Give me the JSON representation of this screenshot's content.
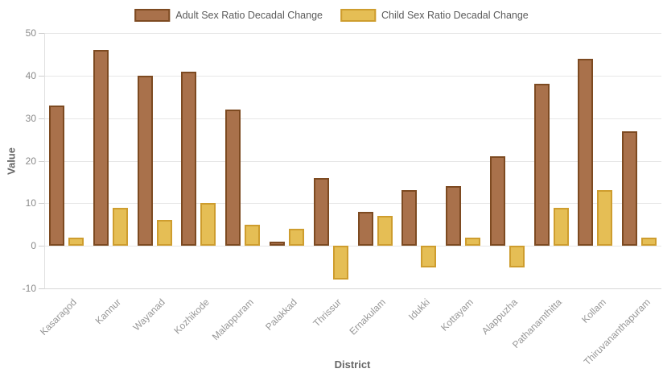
{
  "chart_data": {
    "type": "bar",
    "title": "",
    "xlabel": "District",
    "ylabel": "Value",
    "ylim": [
      -10,
      50
    ],
    "yticks": [
      50,
      40,
      30,
      20,
      10,
      0,
      -10
    ],
    "grid": true,
    "legend_position": "top-center",
    "background_color": "#ffffff",
    "categories": [
      "Kasaragod",
      "Kannur",
      "Wayanad",
      "Kozhikode",
      "Malappuram",
      "Palakkad",
      "Thrissur",
      "Ernakulam",
      "Idukki",
      "Kottayam",
      "Alappuzha",
      "Pathanamthitta",
      "Kollam",
      "Thiruvananthapuram"
    ],
    "series": [
      {
        "name": "Adult Sex Ratio Decadal Change",
        "color": "#a9714b",
        "border_color": "#7d4a21",
        "values": [
          33,
          46,
          40,
          41,
          32,
          1,
          16,
          8,
          13,
          14,
          21,
          38,
          44,
          27
        ]
      },
      {
        "name": "Child Sex Ratio Decadal Change",
        "color": "#e5be55",
        "border_color": "#ce9d2e",
        "values": [
          2,
          9,
          6,
          10,
          5,
          4,
          -8,
          7,
          -5,
          2,
          -5,
          9,
          13,
          2
        ]
      }
    ]
  }
}
